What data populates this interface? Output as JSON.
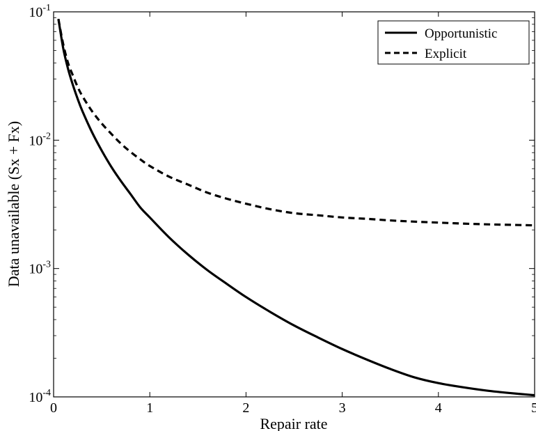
{
  "chart_data": {
    "type": "line",
    "title": "",
    "xlabel": "Repair rate",
    "ylabel": "Data unavailable (Sx + Fx)",
    "xlim": [
      0,
      5
    ],
    "ylim": [
      0.0001,
      0.1
    ],
    "yscale": "log",
    "grid": false,
    "legend_position": "top-right",
    "x_ticks": [
      {
        "value": 0,
        "label": "0"
      },
      {
        "value": 1,
        "label": "1"
      },
      {
        "value": 2,
        "label": "2"
      },
      {
        "value": 3,
        "label": "3"
      },
      {
        "value": 4,
        "label": "4"
      },
      {
        "value": 5,
        "label": "5"
      }
    ],
    "y_ticks": [
      {
        "value": 0.0001,
        "base": "10",
        "exp": "-4"
      },
      {
        "value": 0.001,
        "base": "10",
        "exp": "-3"
      },
      {
        "value": 0.01,
        "base": "10",
        "exp": "-2"
      },
      {
        "value": 0.1,
        "base": "10",
        "exp": "-1"
      }
    ],
    "series": [
      {
        "name": "Opportunistic",
        "style": "solid",
        "color": "#000000",
        "x": [
          0.05,
          0.1,
          0.15,
          0.2,
          0.25,
          0.3,
          0.4,
          0.5,
          0.6,
          0.7,
          0.8,
          0.9,
          1.0,
          1.2,
          1.4,
          1.6,
          1.8,
          2.0,
          2.25,
          2.5,
          2.75,
          3.0,
          3.25,
          3.5,
          3.75,
          4.0,
          4.25,
          4.5,
          4.75,
          5.0
        ],
        "y": [
          0.088,
          0.052,
          0.036,
          0.027,
          0.021,
          0.0168,
          0.0115,
          0.0083,
          0.0062,
          0.0048,
          0.0038,
          0.003,
          0.0025,
          0.00175,
          0.00128,
          0.00097,
          0.00076,
          0.0006,
          0.00046,
          0.00036,
          0.00029,
          0.000236,
          0.000196,
          0.000165,
          0.000142,
          0.000128,
          0.000119,
          0.000112,
          0.000107,
          0.000103
        ]
      },
      {
        "name": "Explicit",
        "style": "dashed",
        "color": "#000000",
        "x": [
          0.05,
          0.1,
          0.15,
          0.2,
          0.25,
          0.3,
          0.4,
          0.5,
          0.6,
          0.7,
          0.8,
          0.9,
          1.0,
          1.2,
          1.4,
          1.6,
          1.8,
          2.0,
          2.25,
          2.5,
          2.75,
          3.0,
          3.25,
          3.5,
          3.75,
          4.0,
          4.25,
          4.5,
          4.75,
          5.0
        ],
        "y": [
          0.088,
          0.056,
          0.04,
          0.032,
          0.026,
          0.022,
          0.0168,
          0.0135,
          0.0112,
          0.0094,
          0.0081,
          0.0071,
          0.0063,
          0.0052,
          0.0045,
          0.0039,
          0.0035,
          0.0032,
          0.0029,
          0.0027,
          0.0026,
          0.0025,
          0.00244,
          0.00237,
          0.00232,
          0.00228,
          0.00224,
          0.00221,
          0.00219,
          0.00217
        ]
      }
    ]
  }
}
